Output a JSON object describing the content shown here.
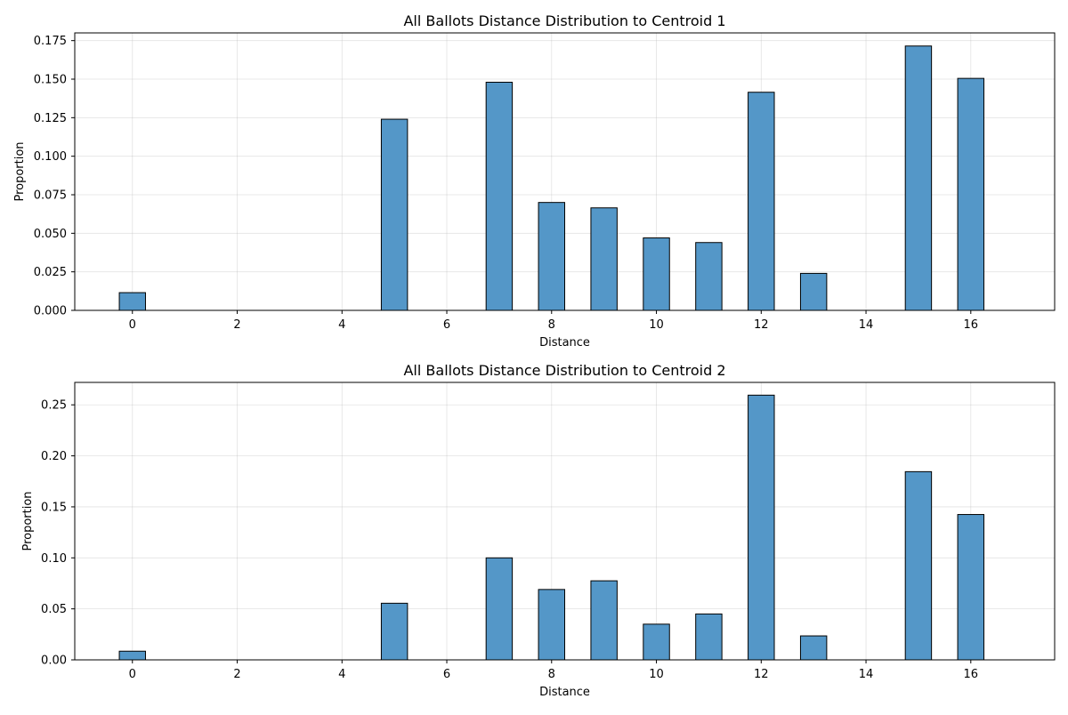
{
  "colors": {
    "bar": "#5497c8"
  },
  "chart_data": [
    {
      "type": "bar",
      "title": "All Ballots Distance Distribution to Centroid 1",
      "xlabel": "Distance",
      "ylabel": "Proportion",
      "xlim": [
        -1.1,
        17.6
      ],
      "ylim": [
        0,
        0.18
      ],
      "xticks": [
        "0",
        "2",
        "4",
        "6",
        "8",
        "10",
        "12",
        "14",
        "16"
      ],
      "yticks": [
        "0.000",
        "0.025",
        "0.050",
        "0.075",
        "0.100",
        "0.125",
        "0.150",
        "0.175"
      ],
      "grid": true,
      "x": [
        0,
        5,
        7,
        8,
        9,
        10,
        11,
        12,
        13,
        15,
        16
      ],
      "values": [
        0.0115,
        0.124,
        0.148,
        0.07,
        0.0665,
        0.047,
        0.044,
        0.1415,
        0.024,
        0.1715,
        0.1505
      ]
    },
    {
      "type": "bar",
      "title": "All Ballots Distance Distribution to Centroid 2",
      "xlabel": "Distance",
      "ylabel": "Proportion",
      "xlim": [
        -1.1,
        17.6
      ],
      "ylim": [
        0,
        0.272
      ],
      "xticks": [
        "0",
        "2",
        "4",
        "6",
        "8",
        "10",
        "12",
        "14",
        "16"
      ],
      "yticks": [
        "0.00",
        "0.05",
        "0.10",
        "0.15",
        "0.20",
        "0.25"
      ],
      "grid": true,
      "x": [
        0,
        5,
        7,
        8,
        9,
        10,
        11,
        12,
        13,
        15,
        16
      ],
      "values": [
        0.0085,
        0.0555,
        0.1,
        0.069,
        0.0775,
        0.035,
        0.045,
        0.2595,
        0.0235,
        0.1845,
        0.1425
      ]
    }
  ]
}
